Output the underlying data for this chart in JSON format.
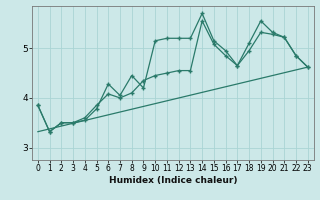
{
  "xlabel": "Humidex (Indice chaleur)",
  "bg_color": "#cce8e8",
  "line_color": "#2a7a6a",
  "grid_color": "#aad4d4",
  "xlim": [
    -0.5,
    23.5
  ],
  "ylim": [
    2.75,
    5.85
  ],
  "yticks": [
    3,
    4,
    5
  ],
  "xticks": [
    0,
    1,
    2,
    3,
    4,
    5,
    6,
    7,
    8,
    9,
    10,
    11,
    12,
    13,
    14,
    15,
    16,
    17,
    18,
    19,
    20,
    21,
    22,
    23
  ],
  "series1_x": [
    0,
    1,
    2,
    3,
    4,
    5,
    6,
    7,
    8,
    9,
    10,
    11,
    12,
    13,
    14,
    15,
    16,
    17,
    18,
    19,
    20,
    21,
    22,
    23
  ],
  "series1_y": [
    3.85,
    3.32,
    3.5,
    3.5,
    3.55,
    3.78,
    4.28,
    4.05,
    4.45,
    4.2,
    5.15,
    5.2,
    5.2,
    5.2,
    5.7,
    5.15,
    4.95,
    4.65,
    5.1,
    5.55,
    5.32,
    5.22,
    4.85,
    4.62
  ],
  "series2_x": [
    0,
    1,
    2,
    3,
    4,
    5,
    6,
    7,
    8,
    9,
    10,
    11,
    12,
    13,
    14,
    15,
    16,
    17,
    18,
    19,
    20,
    21,
    22,
    23
  ],
  "series2_y": [
    3.85,
    3.32,
    3.5,
    3.5,
    3.6,
    3.85,
    4.08,
    4.0,
    4.1,
    4.35,
    4.45,
    4.5,
    4.55,
    4.55,
    5.55,
    5.08,
    4.85,
    4.65,
    4.95,
    5.32,
    5.28,
    5.22,
    4.85,
    4.62
  ],
  "series3_x": [
    0,
    23
  ],
  "series3_y": [
    3.32,
    4.62
  ]
}
